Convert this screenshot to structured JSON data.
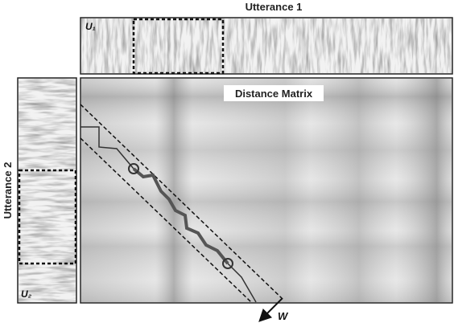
{
  "top_title": "Utterance 1",
  "side_title": "Utterance 2",
  "u1_label": "U₁",
  "u2_label": "U₂",
  "matrix_label": "Distance Matrix",
  "window_label": "W"
}
